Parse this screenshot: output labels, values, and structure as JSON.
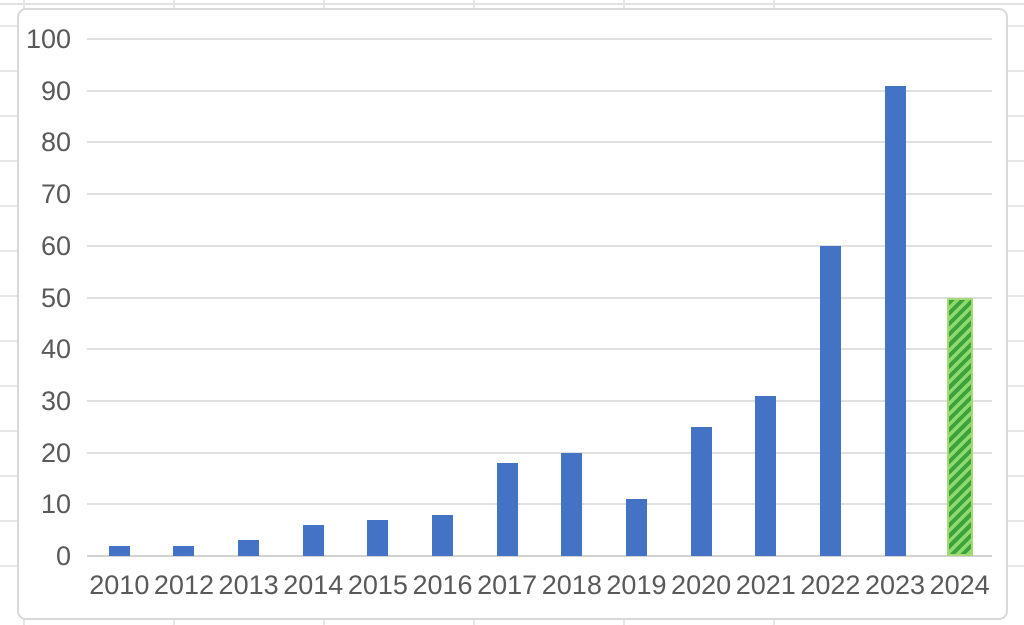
{
  "chart_data": {
    "type": "bar",
    "title": "",
    "xlabel": "",
    "ylabel": "",
    "categories": [
      "2010",
      "2012",
      "2013",
      "2014",
      "2015",
      "2016",
      "2017",
      "2018",
      "2019",
      "2020",
      "2021",
      "2022",
      "2023",
      "2024"
    ],
    "values": [
      2,
      2,
      3,
      6,
      7,
      8,
      18,
      20,
      11,
      25,
      31,
      60,
      91,
      50
    ],
    "ylim": [
      0,
      100
    ],
    "yticks": [
      0,
      10,
      20,
      30,
      40,
      50,
      60,
      70,
      80,
      90,
      100
    ],
    "grid": true,
    "legend": "none",
    "bar_color": "#4472C4",
    "highlight": {
      "category": "2024",
      "index": 13,
      "value": 50,
      "style": "diagonal-hatch",
      "stripe_color": "#3CA33C",
      "fill_color": "#90D96E",
      "border_color": "#A9D976"
    },
    "colors": {
      "gridline": "#E0E0E0",
      "axis_line": "#D2D2D2",
      "tick_label": "#595959",
      "chart_border": "#D9D9D9"
    }
  }
}
